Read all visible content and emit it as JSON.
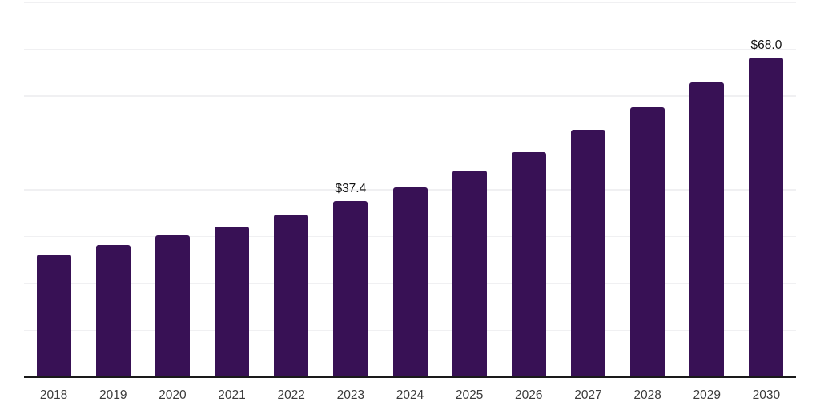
{
  "chart_data": {
    "type": "bar",
    "title": "",
    "xlabel": "",
    "ylabel": "",
    "categories": [
      "2018",
      "2019",
      "2020",
      "2021",
      "2022",
      "2023",
      "2024",
      "2025",
      "2026",
      "2027",
      "2028",
      "2029",
      "2030"
    ],
    "values": [
      25.9,
      28.0,
      30.1,
      31.9,
      34.5,
      37.4,
      40.3,
      44.0,
      47.9,
      52.7,
      57.5,
      62.7,
      68.0
    ],
    "annotations": [
      {
        "category": "2023",
        "text": "$37.4"
      },
      {
        "category": "2030",
        "text": "$68.0"
      }
    ],
    "ylim": [
      0,
      80
    ],
    "gridline_step": 10,
    "grid": true,
    "legend_position": "none",
    "y_axis_tick_labels_visible": false,
    "colors": {
      "bar": "#381155",
      "grid": "#f0f0f2",
      "axis": "#1a1a1a",
      "tick_label": "#3b3b3b",
      "annotation": "#111111"
    }
  }
}
